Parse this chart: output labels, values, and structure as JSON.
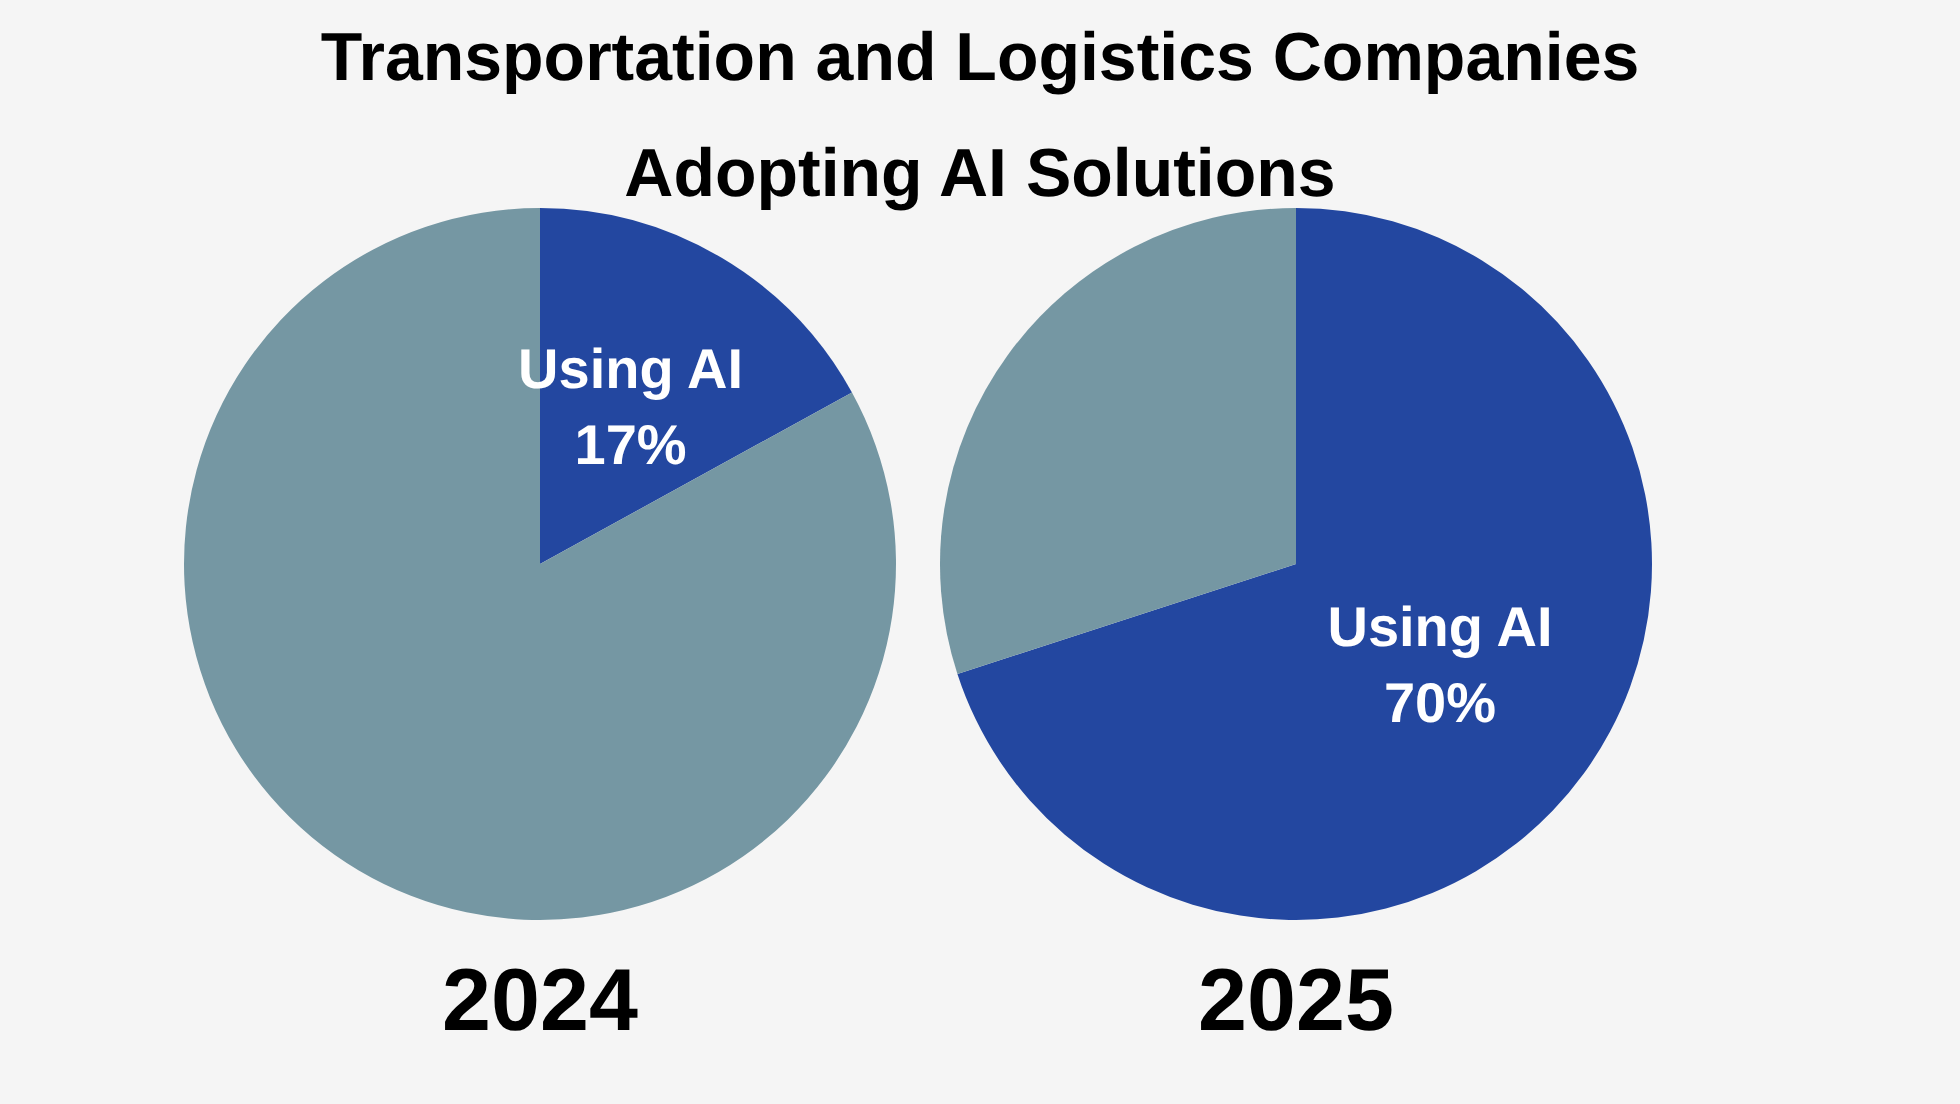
{
  "chart_data": [
    {
      "type": "pie",
      "title": "Transportation and Logistics Companies Adopting AI Solutions",
      "xlabel": "2024",
      "categories": [
        "Using AI",
        null
      ],
      "values": [
        17,
        83
      ],
      "colors": [
        "#2347a0",
        "#7597a3"
      ],
      "value_labels": [
        "17%",
        null
      ],
      "legend": false
    },
    {
      "type": "pie",
      "xlabel": "2025",
      "categories": [
        "Using AI",
        null
      ],
      "values": [
        70,
        30
      ],
      "colors": [
        "#2347a0",
        "#7597a3"
      ],
      "value_labels": [
        "70%",
        null
      ],
      "legend": false
    }
  ]
}
